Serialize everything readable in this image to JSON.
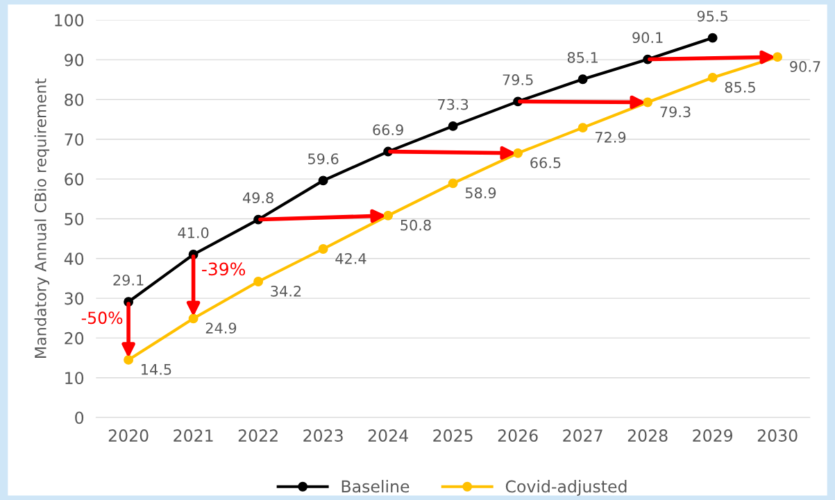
{
  "chart_data": {
    "type": "line",
    "ylabel": "Mandatory Annual CBio requirement",
    "categories": [
      "2020",
      "2021",
      "2022",
      "2023",
      "2024",
      "2025",
      "2026",
      "2027",
      "2028",
      "2029",
      "2030"
    ],
    "series": [
      {
        "name": "Baseline",
        "color": "#000000",
        "values": [
          29.1,
          41.0,
          49.8,
          59.6,
          66.9,
          73.3,
          79.5,
          85.1,
          90.1,
          95.5,
          null
        ],
        "value_labels": [
          "29.1",
          "41.0",
          "49.8",
          "59.6",
          "66.9",
          "73.3",
          "79.5",
          "85.1",
          "90.1",
          "95.5",
          null
        ]
      },
      {
        "name": "Covid-adjusted",
        "color": "#ffc000",
        "values": [
          14.5,
          24.9,
          34.2,
          42.4,
          50.8,
          58.9,
          66.5,
          72.9,
          79.3,
          85.5,
          90.7
        ],
        "value_labels": [
          "14.5",
          "24.9",
          "34.2",
          "42.4",
          "50.8",
          "58.9",
          "66.5",
          "72.9",
          "79.3",
          "85.5",
          "90.7"
        ]
      }
    ],
    "annotations": [
      {
        "text": "-50%",
        "x": "2020",
        "y": 14.5
      },
      {
        "text": "-39%",
        "x": "2021",
        "y": 24.9
      }
    ],
    "ylim": [
      0,
      100
    ],
    "yticks": [
      0,
      10,
      20,
      30,
      40,
      50,
      60,
      70,
      80,
      90,
      100
    ],
    "grid": "y",
    "legend": "bottom",
    "marker": "circle",
    "line_style": "solid"
  }
}
